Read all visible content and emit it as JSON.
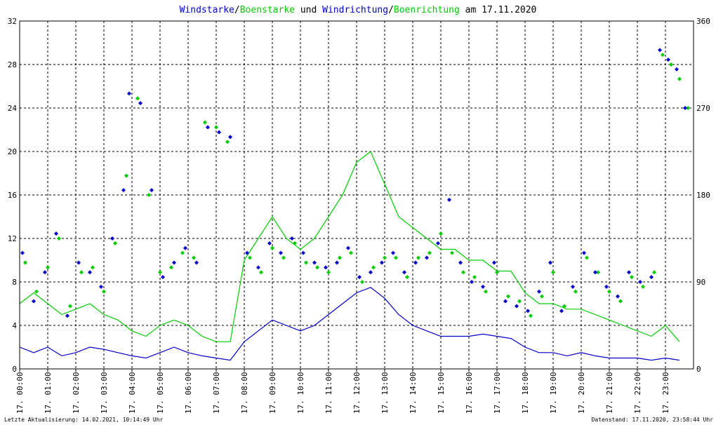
{
  "title": {
    "parts": [
      {
        "text": "Windstarke",
        "color": "#0000cc"
      },
      {
        "text": "/",
        "color": "#000000"
      },
      {
        "text": "Boenstarke",
        "color": "#00cc00"
      },
      {
        "text": " und ",
        "color": "#000000"
      },
      {
        "text": "Windrichtung",
        "color": "#0000cc"
      },
      {
        "text": "/",
        "color": "#000000"
      },
      {
        "text": "Boenrichtung",
        "color": "#00cc00"
      },
      {
        "text": " am 17.11.2020",
        "color": "#000000"
      }
    ]
  },
  "footer": {
    "left": "Letzte Aktualisierung: 14.02.2021, 10:14:49 Uhr",
    "right": "Datenstand: 17.11.2020, 23:58:44 Uhr"
  },
  "colors": {
    "wind": "#0000cc",
    "gust": "#00cc00",
    "grid": "#000000",
    "background": "#ffffff"
  },
  "chart_data": {
    "type": "line",
    "title": "Windstarke/Boenstarke und Windrichtung/Boenrichtung am 17.11.2020",
    "xlabel": "",
    "ylabel": "",
    "xlim": [
      0,
      24
    ],
    "ylim": [
      0,
      32
    ],
    "y2lim": [
      0,
      360
    ],
    "yticks": [
      "0",
      "4",
      "8",
      "12",
      "16",
      "20",
      "24",
      "28",
      "32"
    ],
    "y2ticks": [
      "0",
      "90",
      "180",
      "270",
      "360"
    ],
    "xticks": [
      "17. 00:00",
      "17. 01:00",
      "17. 02:00",
      "17. 03:00",
      "17. 04:00",
      "17. 05:00",
      "17. 06:00",
      "17. 07:00",
      "17. 08:00",
      "17. 09:00",
      "17. 10:00",
      "17. 11:00",
      "17. 12:00",
      "17. 13:00",
      "17. 14:00",
      "17. 15:00",
      "17. 16:00",
      "17. 17:00",
      "17. 18:00",
      "17. 19:00",
      "17. 20:00",
      "17. 21:00",
      "17. 22:00",
      "17. 23:00"
    ],
    "grid": true,
    "series": [
      {
        "name": "Windstarke",
        "axis": "left",
        "kind": "line",
        "color": "#0000cc",
        "x": [
          0,
          0.5,
          1,
          1.5,
          2,
          2.5,
          3,
          3.5,
          4,
          4.5,
          5,
          5.5,
          6,
          6.5,
          7,
          7.5,
          8,
          8.5,
          9,
          9.5,
          10,
          10.5,
          11,
          11.5,
          12,
          12.5,
          13,
          13.5,
          14,
          14.5,
          15,
          15.5,
          16,
          16.5,
          17,
          17.5,
          18,
          18.5,
          19,
          19.5,
          20,
          20.5,
          21,
          21.5,
          22,
          22.5,
          23,
          23.5
        ],
        "y": [
          2,
          1.5,
          2,
          1.2,
          1.5,
          2,
          1.8,
          1.5,
          1.2,
          1,
          1.5,
          2,
          1.5,
          1.2,
          1,
          0.8,
          2.5,
          3.5,
          4.5,
          4,
          3.5,
          4,
          5,
          6,
          7,
          7.5,
          6.5,
          5,
          4,
          3.5,
          3,
          3,
          3,
          3.2,
          3,
          2.8,
          2,
          1.5,
          1.5,
          1.2,
          1.5,
          1.2,
          1,
          1,
          1,
          0.8,
          1,
          0.8
        ]
      },
      {
        "name": "Boenstarke",
        "axis": "left",
        "kind": "line",
        "color": "#00cc00",
        "x": [
          0,
          0.5,
          1,
          1.5,
          2,
          2.5,
          3,
          3.5,
          4,
          4.5,
          5,
          5.5,
          6,
          6.5,
          7,
          7.5,
          8,
          8.5,
          9,
          9.5,
          10,
          10.5,
          11,
          11.5,
          12,
          12.5,
          13,
          13.5,
          14,
          14.5,
          15,
          15.5,
          16,
          16.5,
          17,
          17.5,
          18,
          18.5,
          19,
          19.5,
          20,
          20.5,
          21,
          21.5,
          22,
          22.5,
          23,
          23.5
        ],
        "y": [
          6,
          7,
          6,
          5,
          5.5,
          6,
          5,
          4.5,
          3.5,
          3,
          4,
          4.5,
          4,
          3,
          2.5,
          2.5,
          10,
          12,
          14,
          12,
          11,
          12,
          14,
          16,
          19,
          20,
          17,
          14,
          13,
          12,
          11,
          11,
          10,
          10,
          9,
          9,
          7,
          6,
          6,
          5.5,
          5.5,
          5,
          4.5,
          4,
          3.5,
          3,
          4,
          2.5
        ]
      },
      {
        "name": "Windrichtung",
        "axis": "right",
        "kind": "scatter",
        "color": "#0000cc",
        "x": [
          0.1,
          0.5,
          0.9,
          1.3,
          1.7,
          2.1,
          2.5,
          2.9,
          3.3,
          3.7,
          3.9,
          4.3,
          4.7,
          5.1,
          5.5,
          5.9,
          6.3,
          6.7,
          7.1,
          7.5,
          8.1,
          8.5,
          8.9,
          9.3,
          9.7,
          10.1,
          10.5,
          10.9,
          11.3,
          11.7,
          12.1,
          12.5,
          12.9,
          13.3,
          13.7,
          14.1,
          14.5,
          14.9,
          15.3,
          15.7,
          16.1,
          16.5,
          16.9,
          17.3,
          17.7,
          18.1,
          18.5,
          18.9,
          19.3,
          19.7,
          20.1,
          20.5,
          20.9,
          21.3,
          21.7,
          22.1,
          22.5,
          22.8,
          23.1,
          23.4,
          23.7
        ],
        "y": [
          120,
          70,
          100,
          140,
          55,
          110,
          100,
          85,
          135,
          185,
          285,
          275,
          185,
          95,
          110,
          125,
          110,
          250,
          245,
          240,
          120,
          105,
          130,
          120,
          135,
          120,
          110,
          105,
          110,
          125,
          95,
          100,
          110,
          120,
          100,
          110,
          115,
          130,
          175,
          110,
          90,
          85,
          110,
          70,
          65,
          60,
          80,
          110,
          60,
          85,
          120,
          100,
          85,
          75,
          100,
          90,
          95,
          330,
          320,
          310,
          270
        ]
      },
      {
        "name": "Boenrichtung",
        "axis": "right",
        "kind": "scatter",
        "color": "#00cc00",
        "x": [
          0.2,
          0.6,
          1,
          1.4,
          1.8,
          2.2,
          2.6,
          3,
          3.4,
          3.8,
          4.2,
          4.6,
          5,
          5.4,
          5.8,
          6.2,
          6.6,
          7,
          7.4,
          8.2,
          8.6,
          9,
          9.4,
          9.8,
          10.2,
          10.6,
          11,
          11.4,
          11.8,
          12.2,
          12.6,
          13,
          13.4,
          13.8,
          14.2,
          14.6,
          15,
          15.4,
          15.8,
          16.2,
          16.6,
          17,
          17.4,
          17.8,
          18.2,
          18.6,
          19,
          19.4,
          19.8,
          20.2,
          20.6,
          21,
          21.4,
          21.8,
          22.2,
          22.6,
          22.9,
          23.2,
          23.5,
          23.8
        ],
        "y": [
          110,
          80,
          105,
          135,
          65,
          100,
          105,
          80,
          130,
          200,
          280,
          180,
          100,
          105,
          120,
          115,
          255,
          250,
          235,
          115,
          100,
          125,
          115,
          130,
          110,
          105,
          100,
          115,
          120,
          90,
          105,
          115,
          115,
          95,
          115,
          120,
          140,
          120,
          100,
          95,
          80,
          100,
          75,
          70,
          55,
          75,
          100,
          65,
          80,
          115,
          100,
          80,
          70,
          95,
          85,
          100,
          325,
          315,
          300,
          270
        ]
      }
    ]
  }
}
